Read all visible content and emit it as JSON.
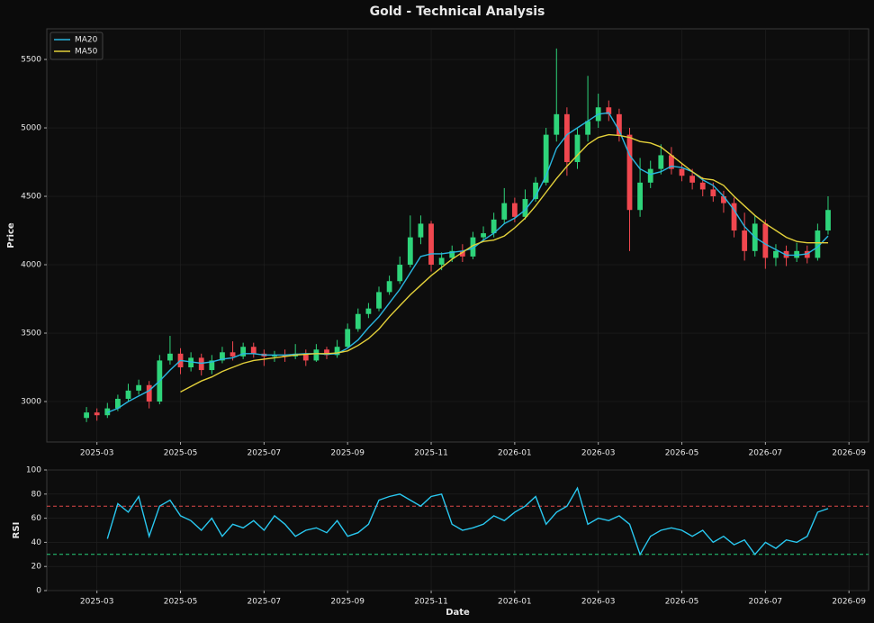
{
  "title": "Gold - Technical Analysis",
  "chart_data": [
    {
      "type": "candlestick",
      "ylabel": "Price",
      "x": [
        2.75,
        3,
        3.25,
        3.5,
        3.75,
        4,
        4.25,
        4.5,
        4.75,
        5,
        5.25,
        5.5,
        5.75,
        6,
        6.25,
        6.5,
        6.75,
        7,
        7.25,
        7.5,
        7.75,
        8,
        8.25,
        8.5,
        8.75,
        9,
        9.25,
        9.5,
        9.75,
        10,
        10.25,
        10.5,
        10.75,
        11,
        11.25,
        11.5,
        11.75,
        12,
        12.25,
        12.5,
        12.75,
        13,
        13.25,
        13.5,
        13.75,
        14,
        14.25,
        14.5,
        14.75,
        15,
        15.25,
        15.5,
        15.75,
        16,
        16.25,
        16.5,
        16.75,
        17,
        17.25,
        17.5,
        17.75,
        18,
        18.25,
        18.5,
        18.75,
        19,
        19.25,
        19.5,
        19.75,
        20,
        20.25,
        20.5
      ],
      "open": [
        2880,
        2920,
        2900,
        2950,
        3020,
        3080,
        3120,
        3000,
        3300,
        3350,
        3250,
        3320,
        3230,
        3300,
        3360,
        3330,
        3400,
        3350,
        3330,
        3340,
        3330,
        3350,
        3300,
        3380,
        3340,
        3400,
        3530,
        3640,
        3680,
        3800,
        3880,
        4000,
        4200,
        4300,
        4000,
        4050,
        4100,
        4060,
        4200,
        4230,
        4330,
        4450,
        4350,
        4480,
        4600,
        4950,
        5100,
        4750,
        4950,
        5050,
        5150,
        5100,
        4950,
        4400,
        4600,
        4700,
        4800,
        4700,
        4650,
        4600,
        4550,
        4500,
        4450,
        4250,
        4100,
        4300,
        4050,
        4100,
        4050,
        4100,
        4050,
        4250
      ],
      "high": [
        2960,
        2950,
        2990,
        3050,
        3130,
        3160,
        3150,
        3340,
        3480,
        3390,
        3360,
        3350,
        3340,
        3400,
        3440,
        3430,
        3430,
        3380,
        3370,
        3380,
        3420,
        3380,
        3420,
        3400,
        3450,
        3570,
        3680,
        3720,
        3840,
        3920,
        4060,
        4360,
        4360,
        4320,
        4090,
        4140,
        4150,
        4240,
        4280,
        4380,
        4560,
        4490,
        4550,
        4640,
        5000,
        5580,
        5150,
        5000,
        5380,
        5250,
        5200,
        5140,
        5000,
        4780,
        4760,
        4880,
        4860,
        4740,
        4700,
        4640,
        4600,
        4540,
        4490,
        4380,
        4360,
        4330,
        4150,
        4140,
        4160,
        4140,
        4300,
        4500
      ],
      "low": [
        2850,
        2860,
        2880,
        2930,
        3000,
        3050,
        2950,
        2980,
        3270,
        3200,
        3220,
        3190,
        3200,
        3280,
        3300,
        3310,
        3320,
        3260,
        3290,
        3290,
        3310,
        3260,
        3290,
        3310,
        3320,
        3390,
        3510,
        3610,
        3660,
        3780,
        3860,
        3980,
        4150,
        3950,
        3960,
        4020,
        4020,
        4040,
        4170,
        4200,
        4300,
        4310,
        4330,
        4460,
        4580,
        4900,
        4650,
        4700,
        4900,
        5000,
        5050,
        4900,
        4100,
        4350,
        4560,
        4660,
        4660,
        4610,
        4550,
        4500,
        4460,
        4380,
        4200,
        4030,
        4060,
        3970,
        3990,
        3990,
        4020,
        4010,
        4030,
        4220
      ],
      "close": [
        2920,
        2900,
        2950,
        3020,
        3080,
        3120,
        3000,
        3300,
        3350,
        3250,
        3320,
        3230,
        3300,
        3360,
        3330,
        3400,
        3350,
        3330,
        3340,
        3330,
        3350,
        3300,
        3380,
        3340,
        3400,
        3530,
        3640,
        3680,
        3800,
        3880,
        4000,
        4200,
        4300,
        4000,
        4050,
        4100,
        4060,
        4200,
        4230,
        4330,
        4450,
        4350,
        4480,
        4600,
        4950,
        5100,
        4750,
        4950,
        5050,
        5150,
        5100,
        4950,
        4400,
        4600,
        4700,
        4800,
        4700,
        4650,
        4600,
        4550,
        4500,
        4450,
        4250,
        4100,
        4300,
        4050,
        4100,
        4050,
        4100,
        4050,
        4250,
        4400
      ],
      "up_color": "#2ed47a",
      "down_color": "#f0474f",
      "series": [
        {
          "name": "MA20",
          "color": "#29b6e0",
          "values": [
            null,
            null,
            2920,
            2950,
            3000,
            3040,
            3080,
            3150,
            3230,
            3300,
            3290,
            3280,
            3290,
            3310,
            3320,
            3350,
            3350,
            3340,
            3340,
            3340,
            3345,
            3350,
            3350,
            3345,
            3350,
            3390,
            3450,
            3540,
            3620,
            3720,
            3820,
            3940,
            4060,
            4080,
            4080,
            4090,
            4100,
            4120,
            4180,
            4230,
            4300,
            4340,
            4400,
            4500,
            4650,
            4850,
            4950,
            5000,
            5050,
            5100,
            5110,
            4980,
            4800,
            4700,
            4660,
            4680,
            4720,
            4710,
            4680,
            4620,
            4580,
            4500,
            4400,
            4280,
            4200,
            4150,
            4110,
            4070,
            4070,
            4080,
            4130,
            4210
          ]
        },
        {
          "name": "MA50",
          "color": "#e3d03a",
          "values": [
            null,
            null,
            null,
            null,
            null,
            null,
            null,
            null,
            null,
            3070,
            3110,
            3150,
            3180,
            3220,
            3250,
            3280,
            3300,
            3310,
            3320,
            3330,
            3340,
            3345,
            3350,
            3350,
            3355,
            3370,
            3410,
            3460,
            3530,
            3620,
            3700,
            3780,
            3850,
            3920,
            3980,
            4040,
            4090,
            4140,
            4170,
            4180,
            4210,
            4270,
            4340,
            4430,
            4530,
            4630,
            4720,
            4800,
            4880,
            4930,
            4950,
            4945,
            4930,
            4900,
            4890,
            4860,
            4800,
            4740,
            4680,
            4630,
            4620,
            4580,
            4500,
            4430,
            4360,
            4300,
            4250,
            4200,
            4170,
            4160,
            4160,
            4160
          ]
        }
      ],
      "xlim": [
        1.8,
        21.47
      ],
      "ylim": [
        2704,
        5724
      ],
      "xticks": [
        {
          "value": 3,
          "label": "2025-03"
        },
        {
          "value": 5,
          "label": "2025-05"
        },
        {
          "value": 7,
          "label": "2025-07"
        },
        {
          "value": 9,
          "label": "2025-09"
        },
        {
          "value": 11,
          "label": "2025-11"
        },
        {
          "value": 13,
          "label": "2026-01"
        },
        {
          "value": 15,
          "label": "2026-03"
        },
        {
          "value": 17,
          "label": "2026-05"
        },
        {
          "value": 19,
          "label": "2026-07"
        },
        {
          "value": 21,
          "label": "2026-09"
        }
      ],
      "yticks": [
        3000,
        3500,
        4000,
        4500,
        5000,
        5500
      ],
      "grid": true,
      "legend": "upper-left"
    },
    {
      "type": "line",
      "xlabel": "Date",
      "ylabel": "RSI",
      "x": [
        2.75,
        3,
        3.25,
        3.5,
        3.75,
        4,
        4.25,
        4.5,
        4.75,
        5,
        5.25,
        5.5,
        5.75,
        6,
        6.25,
        6.5,
        6.75,
        7,
        7.25,
        7.5,
        7.75,
        8,
        8.25,
        8.5,
        8.75,
        9,
        9.25,
        9.5,
        9.75,
        10,
        10.25,
        10.5,
        10.75,
        11,
        11.25,
        11.5,
        11.75,
        12,
        12.25,
        12.5,
        12.75,
        13,
        13.25,
        13.5,
        13.75,
        14,
        14.25,
        14.5,
        14.75,
        15,
        15.25,
        15.5,
        15.75,
        16,
        16.25,
        16.5,
        16.75,
        17,
        17.25,
        17.5,
        17.75,
        18,
        18.25,
        18.5,
        18.75,
        19,
        19.25,
        19.5,
        19.75,
        20,
        20.25,
        20.5
      ],
      "series": [
        {
          "name": "RSI",
          "color": "#29c8f0",
          "values": [
            null,
            null,
            43,
            72,
            65,
            78,
            45,
            70,
            75,
            62,
            58,
            50,
            60,
            45,
            55,
            52,
            58,
            50,
            62,
            55,
            45,
            50,
            52,
            48,
            58,
            45,
            48,
            55,
            75,
            78,
            80,
            75,
            70,
            78,
            80,
            55,
            50,
            52,
            55,
            62,
            58,
            65,
            70,
            78,
            55,
            65,
            70,
            85,
            55,
            60,
            58,
            62,
            55,
            30,
            45,
            50,
            52,
            50,
            45,
            50,
            40,
            45,
            38,
            42,
            30,
            40,
            35,
            42,
            40,
            45,
            65,
            68
          ]
        }
      ],
      "hlines": [
        {
          "value": 70,
          "color": "#e04848"
        },
        {
          "value": 30,
          "color": "#26d07c"
        }
      ],
      "xlim": [
        1.8,
        21.47
      ],
      "ylim": [
        0,
        100
      ],
      "xticks": [
        {
          "value": 3,
          "label": "2025-03"
        },
        {
          "value": 5,
          "label": "2025-05"
        },
        {
          "value": 7,
          "label": "2025-07"
        },
        {
          "value": 9,
          "label": "2025-09"
        },
        {
          "value": 11,
          "label": "2025-11"
        },
        {
          "value": 13,
          "label": "2026-01"
        },
        {
          "value": 15,
          "label": "2026-03"
        },
        {
          "value": 17,
          "label": "2026-05"
        },
        {
          "value": 19,
          "label": "2026-07"
        },
        {
          "value": 21,
          "label": "2026-09"
        }
      ],
      "yticks": [
        0,
        20,
        40,
        60,
        80,
        100
      ],
      "grid": true
    }
  ]
}
